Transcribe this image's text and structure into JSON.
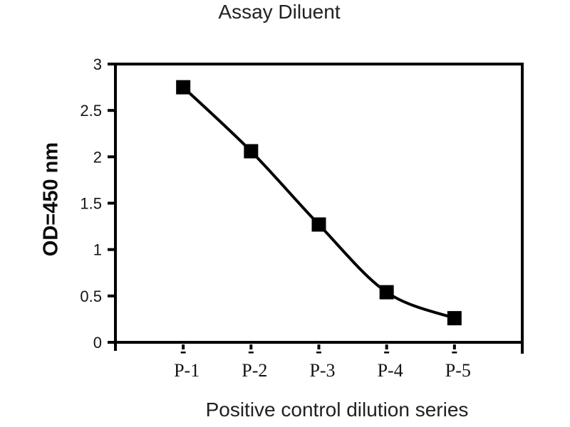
{
  "chart_data": {
    "type": "line",
    "title": "Assay Diluent",
    "categories": [
      "P-1",
      "P-2",
      "P-3",
      "P-4",
      "P-5"
    ],
    "series": [
      {
        "name": "Positive control",
        "values": [
          2.75,
          2.06,
          1.27,
          0.54,
          0.26
        ]
      }
    ],
    "xlabel": "Positive control dilution series",
    "ylabel": "OD=450 nm",
    "ylim": [
      0,
      3
    ],
    "yticks": [
      "3",
      "2.5",
      "2",
      "1.5",
      "1",
      "0.5",
      "0"
    ],
    "grid": false,
    "legend": "none",
    "marker": "square",
    "smoothed": true,
    "line_color": "#000000",
    "marker_color": "#000000",
    "axis_color": "#000000",
    "tick_label_color": "#141414",
    "title_color": "#212121"
  }
}
